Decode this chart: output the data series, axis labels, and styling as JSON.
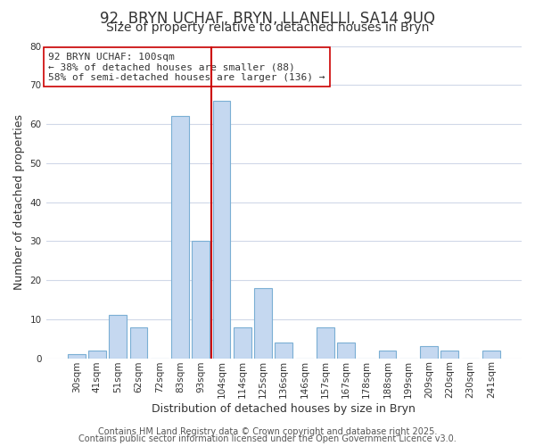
{
  "title": "92, BRYN UCHAF, BRYN, LLANELLI, SA14 9UQ",
  "subtitle": "Size of property relative to detached houses in Bryn",
  "xlabel": "Distribution of detached houses by size in Bryn",
  "ylabel": "Number of detached properties",
  "bar_labels": [
    "30sqm",
    "41sqm",
    "51sqm",
    "62sqm",
    "72sqm",
    "83sqm",
    "93sqm",
    "104sqm",
    "114sqm",
    "125sqm",
    "136sqm",
    "146sqm",
    "157sqm",
    "167sqm",
    "178sqm",
    "188sqm",
    "199sqm",
    "209sqm",
    "220sqm",
    "230sqm",
    "241sqm"
  ],
  "bar_values": [
    1,
    2,
    11,
    8,
    0,
    62,
    30,
    66,
    8,
    18,
    4,
    0,
    8,
    4,
    0,
    2,
    0,
    3,
    2,
    0,
    2
  ],
  "bar_color": "#c5d8f0",
  "bar_edge_color": "#7bafd4",
  "highlight_index": 7,
  "highlight_line_color": "#cc0000",
  "annotation_text": "92 BRYN UCHAF: 100sqm\n← 38% of detached houses are smaller (88)\n58% of semi-detached houses are larger (136) →",
  "annotation_box_color": "white",
  "annotation_box_edge_color": "#cc0000",
  "ylim": [
    0,
    80
  ],
  "yticks": [
    0,
    10,
    20,
    30,
    40,
    50,
    60,
    70,
    80
  ],
  "footer_line1": "Contains HM Land Registry data © Crown copyright and database right 2025.",
  "footer_line2": "Contains public sector information licensed under the Open Government Licence v3.0.",
  "bg_color": "#ffffff",
  "grid_color": "#d0d8e8",
  "title_fontsize": 12,
  "subtitle_fontsize": 10,
  "axis_label_fontsize": 9,
  "tick_fontsize": 7.5,
  "annotation_fontsize": 8,
  "footer_fontsize": 7
}
